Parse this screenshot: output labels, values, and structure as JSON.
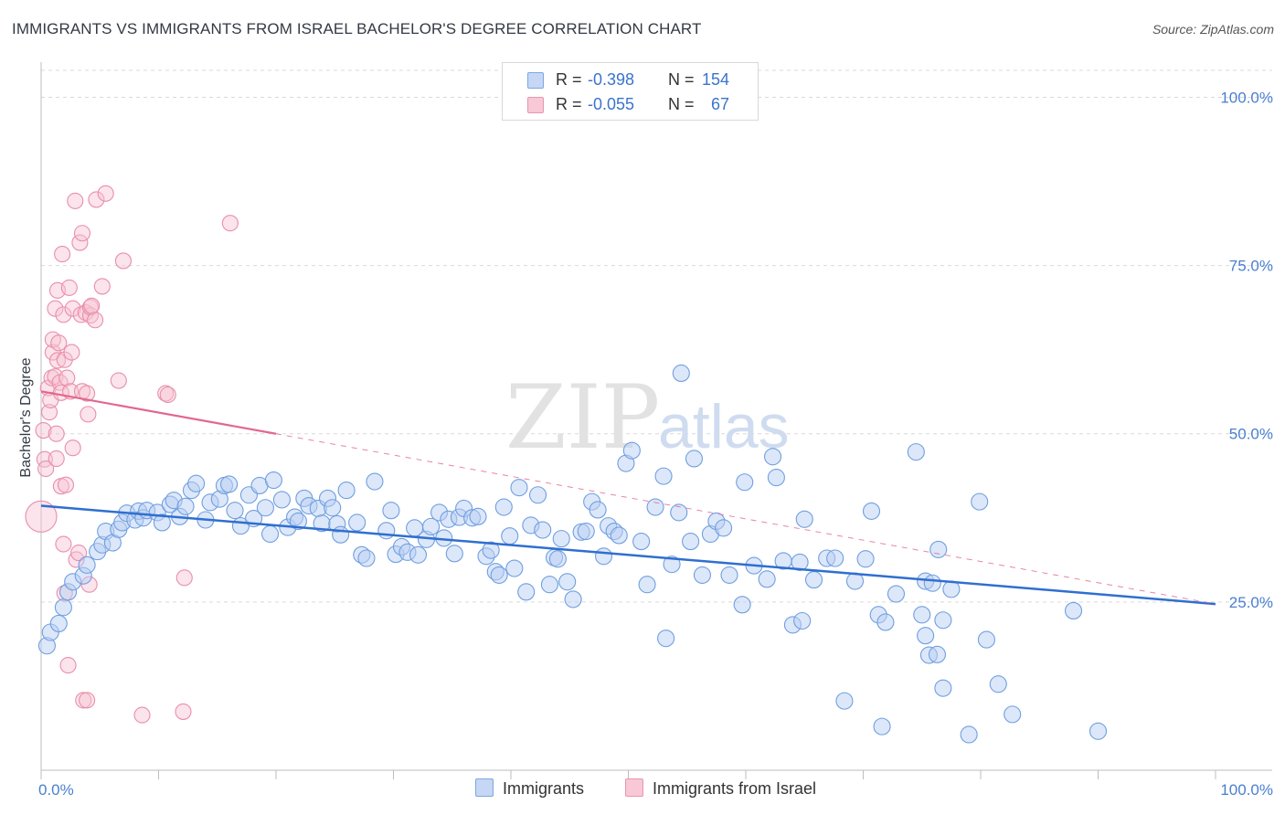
{
  "header": {
    "title": "IMMIGRANTS VS IMMIGRANTS FROM ISRAEL BACHELOR'S DEGREE CORRELATION CHART",
    "source": "Source: ZipAtlas.com"
  },
  "watermark": {
    "zip": "ZIP",
    "atlas": "atlas"
  },
  "legend": {
    "r_label": "R =",
    "n_label": "N =",
    "rows": [
      {
        "name": "Immigrants",
        "r": "-0.398",
        "n": "154",
        "fill": "#c5d7f5",
        "stroke": "#7ea6e0"
      },
      {
        "name": "Immigrants from Israel",
        "r": "-0.055",
        "n": "67",
        "fill": "#f8c8d6",
        "stroke": "#e895b0"
      }
    ]
  },
  "bottom_legend": {
    "items": [
      "Immigrants",
      "Immigrants from Israel"
    ]
  },
  "chart_data": {
    "type": "scatter",
    "title": "IMMIGRANTS VS IMMIGRANTS FROM ISRAEL BACHELOR'S DEGREE CORRELATION CHART",
    "xlabel": "",
    "ylabel": "Bachelor's Degree",
    "xlim": [
      0,
      100
    ],
    "ylim": [
      0,
      104
    ],
    "x_tick_labels": [
      "0.0%",
      "100.0%"
    ],
    "y_ticks": [
      25,
      50,
      75,
      100
    ],
    "y_tick_labels": [
      "25.0%",
      "50.0%",
      "75.0%",
      "100.0%"
    ],
    "grid": true,
    "colors": {
      "blue": "#6f9fe0",
      "blue_fill": "#b9cff3",
      "blue_line": "#2f6fd0",
      "pink": "#e98eac",
      "pink_fill": "#f6c3d3",
      "pink_line": "#e2678f"
    },
    "series": [
      {
        "name": "Immigrants",
        "trend": {
          "x0": 0,
          "y0": 39.3,
          "x1": 100,
          "y1": 24.7
        },
        "points": [
          [
            0.5,
            18.5
          ],
          [
            0.8,
            20.5
          ],
          [
            1.5,
            21.8
          ],
          [
            1.9,
            24.2
          ],
          [
            2.3,
            26.5
          ],
          [
            2.7,
            28
          ],
          [
            3.6,
            28.9
          ],
          [
            3.9,
            30.5
          ],
          [
            4.8,
            32.5
          ],
          [
            5.2,
            33.5
          ],
          [
            5.5,
            35.5
          ],
          [
            6.1,
            33.8
          ],
          [
            6.6,
            35.8
          ],
          [
            6.9,
            36.8
          ],
          [
            7.3,
            38.2
          ],
          [
            8.0,
            37.2
          ],
          [
            8.3,
            38.5
          ],
          [
            8.7,
            37.5
          ],
          [
            9.0,
            38.6
          ],
          [
            9.9,
            38.3
          ],
          [
            10.3,
            36.8
          ],
          [
            11.0,
            39.5
          ],
          [
            11.3,
            40.1
          ],
          [
            11.8,
            37.7
          ],
          [
            12.3,
            39.2
          ],
          [
            12.8,
            41.6
          ],
          [
            13.2,
            42.6
          ],
          [
            14.0,
            37.2
          ],
          [
            14.4,
            39.8
          ],
          [
            15.2,
            40.3
          ],
          [
            15.6,
            42.3
          ],
          [
            16.0,
            42.5
          ],
          [
            16.5,
            38.6
          ],
          [
            17.0,
            36.3
          ],
          [
            17.7,
            40.9
          ],
          [
            18.1,
            37.4
          ],
          [
            18.6,
            42.3
          ],
          [
            19.1,
            39.0
          ],
          [
            19.5,
            35.1
          ],
          [
            19.8,
            43.1
          ],
          [
            20.5,
            40.2
          ],
          [
            21.0,
            36.1
          ],
          [
            21.6,
            37.6
          ],
          [
            21.9,
            37.0
          ],
          [
            22.4,
            40.4
          ],
          [
            22.8,
            39.3
          ],
          [
            23.6,
            38.9
          ],
          [
            23.9,
            36.7
          ],
          [
            24.4,
            40.4
          ],
          [
            24.8,
            39.0
          ],
          [
            25.2,
            36.6
          ],
          [
            25.5,
            35.0
          ],
          [
            26.0,
            41.6
          ],
          [
            26.9,
            36.8
          ],
          [
            27.3,
            32.0
          ],
          [
            27.7,
            31.5
          ],
          [
            28.4,
            42.9
          ],
          [
            29.4,
            35.6
          ],
          [
            29.8,
            38.6
          ],
          [
            30.2,
            32.1
          ],
          [
            30.7,
            33.2
          ],
          [
            31.2,
            32.4
          ],
          [
            32.1,
            32.0
          ],
          [
            31.8,
            36.0
          ],
          [
            32.8,
            34.3
          ],
          [
            33.2,
            36.2
          ],
          [
            33.9,
            38.3
          ],
          [
            34.3,
            34.5
          ],
          [
            34.7,
            37.3
          ],
          [
            35.2,
            32.2
          ],
          [
            35.6,
            37.6
          ],
          [
            36.0,
            38.9
          ],
          [
            36.7,
            37.5
          ],
          [
            37.2,
            37.7
          ],
          [
            37.9,
            31.8
          ],
          [
            38.3,
            32.7
          ],
          [
            38.7,
            29.5
          ],
          [
            39.0,
            29.0
          ],
          [
            39.4,
            39.1
          ],
          [
            39.9,
            34.8
          ],
          [
            40.3,
            30.0
          ],
          [
            40.7,
            42.0
          ],
          [
            41.3,
            26.5
          ],
          [
            41.7,
            36.4
          ],
          [
            42.3,
            40.9
          ],
          [
            42.7,
            35.7
          ],
          [
            43.3,
            27.6
          ],
          [
            43.7,
            31.6
          ],
          [
            44.0,
            31.4
          ],
          [
            44.3,
            34.4
          ],
          [
            44.8,
            28.0
          ],
          [
            45.3,
            25.4
          ],
          [
            46.0,
            35.4
          ],
          [
            46.4,
            35.5
          ],
          [
            46.9,
            39.9
          ],
          [
            47.4,
            38.7
          ],
          [
            47.9,
            31.8
          ],
          [
            48.3,
            36.3
          ],
          [
            48.8,
            35.5
          ],
          [
            49.2,
            34.9
          ],
          [
            49.8,
            45.6
          ],
          [
            50.3,
            47.5
          ],
          [
            51.1,
            34.0
          ],
          [
            51.6,
            27.6
          ],
          [
            52.3,
            39.1
          ],
          [
            53.0,
            43.7
          ],
          [
            53.2,
            19.6
          ],
          [
            53.7,
            30.6
          ],
          [
            54.3,
            38.3
          ],
          [
            54.5,
            59.0
          ],
          [
            55.3,
            34.0
          ],
          [
            55.6,
            46.3
          ],
          [
            56.3,
            29.0
          ],
          [
            57.0,
            35.1
          ],
          [
            57.5,
            37.0
          ],
          [
            58.1,
            36.0
          ],
          [
            58.6,
            29.0
          ],
          [
            59.7,
            24.6
          ],
          [
            59.9,
            42.8
          ],
          [
            60.7,
            30.4
          ],
          [
            61.8,
            28.4
          ],
          [
            62.3,
            46.6
          ],
          [
            62.6,
            43.5
          ],
          [
            63.2,
            31.1
          ],
          [
            64.0,
            21.6
          ],
          [
            64.6,
            30.9
          ],
          [
            64.8,
            22.2
          ],
          [
            65.0,
            37.3
          ],
          [
            65.8,
            28.3
          ],
          [
            66.9,
            31.5
          ],
          [
            67.6,
            31.5
          ],
          [
            68.4,
            10.3
          ],
          [
            69.3,
            28.1
          ],
          [
            70.2,
            31.4
          ],
          [
            70.7,
            38.5
          ],
          [
            71.3,
            23.1
          ],
          [
            71.6,
            6.5
          ],
          [
            71.9,
            22.0
          ],
          [
            72.8,
            26.2
          ],
          [
            74.5,
            47.3
          ],
          [
            75.3,
            28.1
          ],
          [
            75.3,
            20.0
          ],
          [
            75.6,
            17.1
          ],
          [
            75.9,
            27.8
          ],
          [
            76.3,
            17.2
          ],
          [
            76.4,
            32.8
          ],
          [
            77.5,
            26.9
          ],
          [
            76.8,
            22.3
          ],
          [
            75.0,
            23.1
          ],
          [
            76.8,
            12.2
          ],
          [
            79.0,
            5.3
          ],
          [
            79.9,
            39.9
          ],
          [
            80.5,
            19.4
          ],
          [
            81.5,
            12.8
          ],
          [
            82.7,
            8.3
          ],
          [
            87.9,
            23.7
          ],
          [
            90.0,
            5.8
          ]
        ]
      },
      {
        "name": "Immigrants from Israel",
        "trend": {
          "x0": 0,
          "y0": 56.3,
          "x1": 20,
          "y1": 50.0,
          "dash_to": {
            "x": 100,
            "y": 24.7
          }
        },
        "points": [
          [
            0.0,
            37.7
          ],
          [
            0.2,
            50.5
          ],
          [
            0.3,
            46.2
          ],
          [
            0.4,
            44.8
          ],
          [
            0.6,
            56.8
          ],
          [
            0.7,
            53.2
          ],
          [
            0.8,
            55.0
          ],
          [
            0.9,
            58.3
          ],
          [
            1.0,
            62.1
          ],
          [
            1.0,
            64.0
          ],
          [
            1.2,
            58.5
          ],
          [
            1.2,
            68.6
          ],
          [
            1.3,
            50.0
          ],
          [
            1.3,
            46.3
          ],
          [
            1.4,
            71.3
          ],
          [
            1.4,
            60.9
          ],
          [
            1.5,
            63.5
          ],
          [
            1.6,
            57.6
          ],
          [
            1.7,
            56.1
          ],
          [
            1.7,
            42.2
          ],
          [
            1.8,
            76.7
          ],
          [
            1.9,
            33.6
          ],
          [
            1.9,
            67.7
          ],
          [
            2.0,
            61.0
          ],
          [
            2.0,
            26.3
          ],
          [
            2.1,
            42.4
          ],
          [
            2.2,
            58.3
          ],
          [
            2.3,
            15.6
          ],
          [
            2.4,
            71.7
          ],
          [
            2.5,
            56.3
          ],
          [
            2.6,
            62.1
          ],
          [
            2.7,
            68.6
          ],
          [
            2.7,
            47.9
          ],
          [
            2.9,
            84.6
          ],
          [
            3.0,
            31.3
          ],
          [
            3.2,
            32.3
          ],
          [
            3.3,
            78.4
          ],
          [
            3.4,
            67.7
          ],
          [
            3.5,
            56.3
          ],
          [
            3.5,
            79.8
          ],
          [
            3.6,
            10.4
          ],
          [
            3.8,
            68.0
          ],
          [
            3.9,
            10.4
          ],
          [
            3.9,
            56.0
          ],
          [
            4.0,
            52.9
          ],
          [
            4.1,
            27.6
          ],
          [
            4.2,
            67.6
          ],
          [
            4.2,
            68.8
          ],
          [
            4.3,
            69.0
          ],
          [
            4.6,
            66.9
          ],
          [
            4.7,
            84.8
          ],
          [
            5.2,
            71.9
          ],
          [
            5.5,
            85.7
          ],
          [
            6.6,
            57.9
          ],
          [
            7.0,
            75.7
          ],
          [
            8.6,
            8.2
          ],
          [
            10.6,
            56.0
          ],
          [
            10.8,
            55.8
          ],
          [
            12.1,
            8.7
          ],
          [
            12.2,
            28.6
          ],
          [
            16.1,
            81.3
          ]
        ]
      }
    ]
  }
}
